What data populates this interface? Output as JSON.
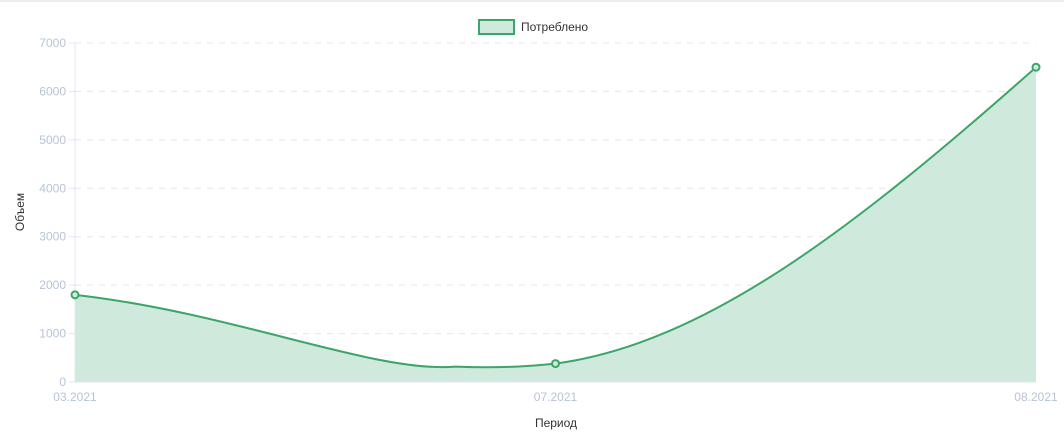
{
  "colors": {
    "line": "#3da56a",
    "fill": "#cfeadc",
    "grid": "#e3e7ee",
    "tick": "#b7c4d6",
    "axis_title": "#333333"
  },
  "chart_data": {
    "type": "area",
    "categories": [
      "03.2021",
      "07.2021",
      "08.2021"
    ],
    "series": [
      {
        "name": "Потреблено",
        "values": [
          1800,
          380,
          6500
        ]
      }
    ],
    "xlabel": "Период",
    "ylabel": "Объем",
    "ylim": [
      0,
      7000
    ],
    "yticks": [
      0,
      1000,
      2000,
      3000,
      4000,
      5000,
      6000,
      7000
    ],
    "grid": true,
    "legend": "top-center",
    "smooth": true
  }
}
